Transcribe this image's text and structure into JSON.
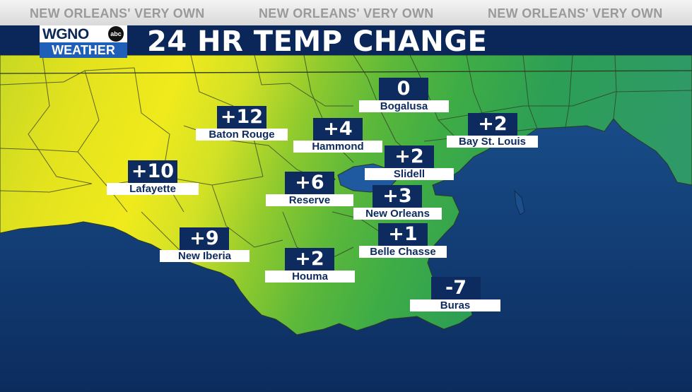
{
  "ticker": {
    "text_1": "NEW ORLEANS' VERY OWN",
    "text_2": "NEW ORLEANS' VERY OWN",
    "text_3": "NEW ORLEANS' VERY OWN"
  },
  "title": "24 HR TEMP CHANGE",
  "logo": {
    "call_letters": "WGNO",
    "network": "abc",
    "subtitle": "WEATHER"
  },
  "colors": {
    "title_bar": "#0b2659",
    "water": "#0d2f63",
    "label_box": "#0d2b5e",
    "warm_change": "#e8e41c",
    "cool_change": "#1f9a4a"
  },
  "cities": [
    {
      "name": "Bogalusa",
      "change": "0"
    },
    {
      "name": "Baton Rouge",
      "change": "+12"
    },
    {
      "name": "Hammond",
      "change": "+4"
    },
    {
      "name": "Bay St. Louis",
      "change": "+2"
    },
    {
      "name": "Slidell",
      "change": "+2"
    },
    {
      "name": "Lafayette",
      "change": "+10"
    },
    {
      "name": "Reserve",
      "change": "+6"
    },
    {
      "name": "New Orleans",
      "change": "+3"
    },
    {
      "name": "New Iberia",
      "change": "+9"
    },
    {
      "name": "Belle Chasse",
      "change": "+1"
    },
    {
      "name": "Houma",
      "change": "+2"
    },
    {
      "name": "Buras",
      "change": "-7"
    }
  ]
}
